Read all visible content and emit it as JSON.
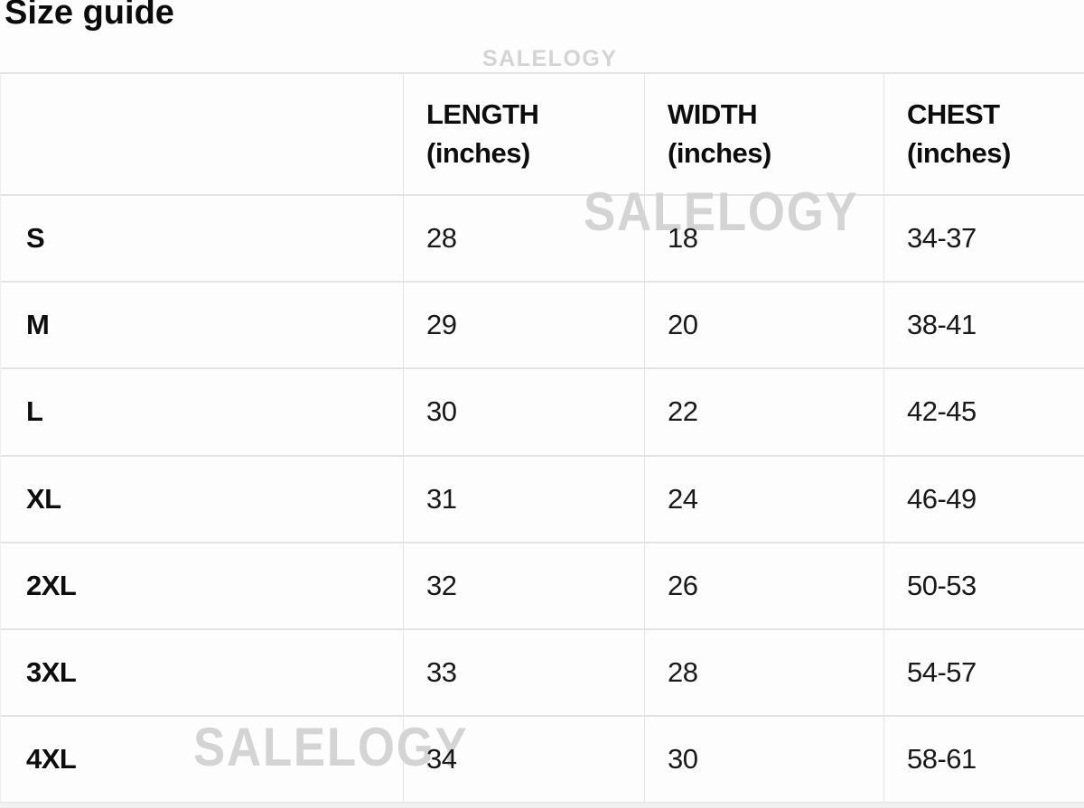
{
  "page": {
    "title": "Size guide"
  },
  "watermark": {
    "text": "SALELOGY"
  },
  "table": {
    "header": {
      "size": "",
      "length_label": "LENGTH",
      "length_unit": "(inches)",
      "width_label": "WIDTH",
      "width_unit": "(inches)",
      "chest_label": "CHEST",
      "chest_unit": "(inches)"
    },
    "rows": [
      {
        "size": "S",
        "length": "28",
        "width": "18",
        "chest": "34-37"
      },
      {
        "size": "M",
        "length": "29",
        "width": "20",
        "chest": "38-41"
      },
      {
        "size": "L",
        "length": "30",
        "width": "22",
        "chest": "42-45"
      },
      {
        "size": "XL",
        "length": "31",
        "width": "24",
        "chest": "46-49"
      },
      {
        "size": "2XL",
        "length": "32",
        "width": "26",
        "chest": "50-53"
      },
      {
        "size": "3XL",
        "length": "33",
        "width": "28",
        "chest": "54-57"
      },
      {
        "size": "4XL",
        "length": "34",
        "width": "30",
        "chest": "58-61"
      }
    ],
    "colors": {
      "border": "#e3e3e3",
      "text": "#191919",
      "watermark": "#d4d4d4",
      "background": "#fdfdfd"
    }
  }
}
